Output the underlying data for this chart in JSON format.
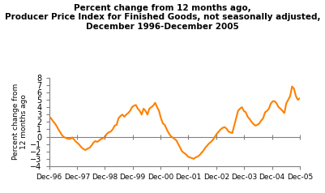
{
  "title_line1": "Percent change from 12 months ago,",
  "title_line2": "Producer Price Index for Finished Goods, not seasonally adjusted,",
  "title_line3": "December 1996-December 2005",
  "ylabel": "Percent change from\n12 months ago",
  "xlabel_ticks": [
    "Dec-96",
    "Dec-97",
    "Dec-98",
    "Dec-99",
    "Dec-00",
    "Dec-01",
    "Dec-02",
    "Dec-03",
    "Dec-04",
    "Dec-05"
  ],
  "ylim": [
    -4,
    8
  ],
  "yticks": [
    -4,
    -3,
    -2,
    -1,
    0,
    1,
    2,
    3,
    4,
    5,
    6,
    7,
    8
  ],
  "line_color": "#FF8000",
  "line_width": 1.5,
  "background_color": "#ffffff",
  "values": [
    2.7,
    2.5,
    2.1,
    1.8,
    1.4,
    0.9,
    0.5,
    0.1,
    -0.1,
    -0.2,
    -0.3,
    -0.3,
    -0.1,
    -0.4,
    -0.7,
    -0.9,
    -1.2,
    -1.5,
    -1.7,
    -1.8,
    -1.6,
    -1.5,
    -1.2,
    -0.8,
    -0.6,
    -0.7,
    -0.5,
    -0.3,
    -0.2,
    0.0,
    0.4,
    0.6,
    0.7,
    1.0,
    1.5,
    1.6,
    2.5,
    2.8,
    3.0,
    2.7,
    3.0,
    3.2,
    3.5,
    4.0,
    4.2,
    4.3,
    3.8,
    3.5,
    3.0,
    3.8,
    3.5,
    3.0,
    3.8,
    4.0,
    4.2,
    4.6,
    4.0,
    3.5,
    2.5,
    1.8,
    1.6,
    1.0,
    0.5,
    0.1,
    -0.1,
    -0.3,
    -0.5,
    -1.0,
    -1.5,
    -2.0,
    -2.2,
    -2.4,
    -2.7,
    -2.8,
    -2.9,
    -3.0,
    -2.8,
    -2.7,
    -2.5,
    -2.2,
    -1.9,
    -1.5,
    -1.2,
    -0.9,
    -0.7,
    -0.4,
    0.0,
    0.4,
    0.7,
    1.0,
    1.2,
    1.3,
    1.1,
    0.7,
    0.6,
    0.5,
    1.5,
    2.5,
    3.5,
    3.8,
    4.0,
    3.5,
    3.3,
    2.7,
    2.4,
    2.0,
    1.7,
    1.5,
    1.6,
    1.8,
    2.2,
    2.5,
    3.3,
    3.5,
    3.8,
    4.5,
    4.8,
    4.8,
    4.5,
    4.0,
    3.8,
    3.5,
    3.2,
    4.5,
    5.0,
    5.5,
    6.8,
    6.5,
    5.5,
    5.0,
    5.2
  ]
}
